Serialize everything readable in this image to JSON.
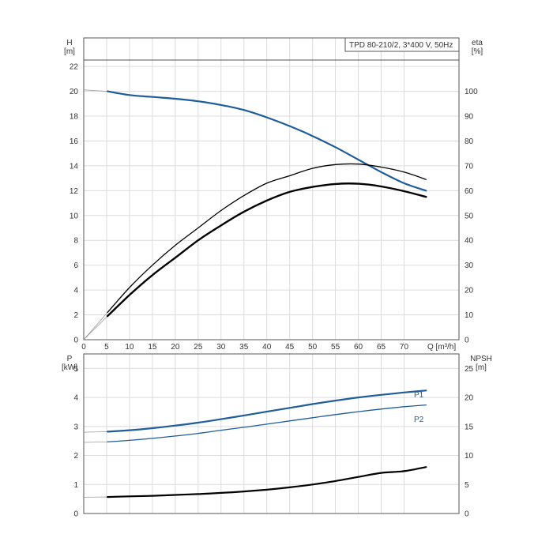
{
  "chart_data": [
    {
      "type": "line",
      "title": "TPD 80-210/2, 3*400 V, 50Hz",
      "left_axis": {
        "name": "H",
        "unit": "[m]",
        "ylim": [
          0,
          24.3
        ],
        "ticks": [
          0,
          2,
          4,
          6,
          8,
          10,
          12,
          14,
          16,
          18,
          20,
          22
        ]
      },
      "right_axis": {
        "name": "eta",
        "unit": "[%]",
        "ylim": [
          0,
          121.5
        ],
        "ticks": [
          0,
          10,
          20,
          30,
          40,
          50,
          60,
          70,
          80,
          90,
          100
        ]
      },
      "x_axis": {
        "name": "Q [m³/h]",
        "xlim": [
          0,
          82
        ],
        "ticks": [
          0,
          5,
          10,
          15,
          20,
          25,
          30,
          35,
          40,
          45,
          50,
          55,
          60,
          65,
          70
        ]
      },
      "grid": true,
      "series": [
        {
          "key": "H",
          "axis": "left",
          "color": "#1e5c9b",
          "x": [
            5.2,
            10,
            15,
            20,
            25,
            30,
            35,
            40,
            45,
            50,
            55,
            60,
            65,
            70,
            74.8
          ],
          "values": [
            20.0,
            19.7,
            19.55,
            19.4,
            19.2,
            18.9,
            18.5,
            17.9,
            17.2,
            16.4,
            15.5,
            14.5,
            13.5,
            12.6,
            12.0
          ]
        },
        {
          "key": "eta",
          "axis": "right",
          "color": "#000000",
          "x": [
            5.2,
            10,
            15,
            20,
            25,
            30,
            35,
            40,
            45,
            50,
            55,
            60,
            65,
            70,
            74.8
          ],
          "values": [
            11,
            21,
            30,
            38,
            45,
            52,
            58,
            63,
            66,
            69,
            70.5,
            70.7,
            69.5,
            67.5,
            64.5
          ]
        },
        {
          "key": "eta_p",
          "axis": "right",
          "color": "#000000",
          "x": [
            5.2,
            10,
            15,
            20,
            25,
            30,
            35,
            40,
            45,
            50,
            55,
            60,
            65,
            70,
            74.8
          ],
          "values": [
            9.5,
            18,
            26,
            33,
            40,
            46,
            51.5,
            56,
            59.5,
            61.5,
            62.7,
            62.8,
            61.7,
            59.8,
            57.5
          ]
        }
      ]
    },
    {
      "type": "line",
      "left_axis": {
        "name": "P",
        "unit": "[kW]",
        "ylim": [
          0,
          5.5
        ],
        "ticks": [
          0,
          1,
          2,
          3,
          4,
          5
        ]
      },
      "right_axis": {
        "name": "NPSH",
        "unit": "[m]",
        "ylim": [
          0,
          27.5
        ],
        "ticks": [
          0,
          5,
          10,
          15,
          20,
          25
        ]
      },
      "x_axis": {
        "xlim": [
          0,
          82
        ]
      },
      "grid": true,
      "series": [
        {
          "name": "P1",
          "axis": "left",
          "color": "#1e5c9b",
          "x": [
            5.2,
            10,
            15,
            20,
            25,
            30,
            35,
            40,
            45,
            50,
            55,
            60,
            65,
            70,
            74.8
          ],
          "values": [
            2.82,
            2.87,
            2.94,
            3.03,
            3.13,
            3.25,
            3.38,
            3.51,
            3.64,
            3.77,
            3.89,
            4.0,
            4.09,
            4.17,
            4.24
          ]
        },
        {
          "name": "P2",
          "axis": "left",
          "color": "#1e5c9b",
          "x": [
            5.2,
            10,
            15,
            20,
            25,
            30,
            35,
            40,
            45,
            50,
            55,
            60,
            65,
            70,
            74.8
          ],
          "values": [
            2.47,
            2.52,
            2.59,
            2.67,
            2.76,
            2.87,
            2.97,
            3.08,
            3.19,
            3.3,
            3.41,
            3.51,
            3.6,
            3.68,
            3.74
          ]
        },
        {
          "key": "NPSH",
          "axis": "right",
          "color": "#000000",
          "x": [
            5.2,
            10,
            15,
            20,
            25,
            30,
            35,
            40,
            45,
            50,
            55,
            60,
            65,
            70,
            74.8
          ],
          "values": [
            2.85,
            2.95,
            3.05,
            3.2,
            3.35,
            3.55,
            3.8,
            4.1,
            4.5,
            5.0,
            5.6,
            6.3,
            7.0,
            7.3,
            8.0
          ]
        }
      ]
    }
  ]
}
